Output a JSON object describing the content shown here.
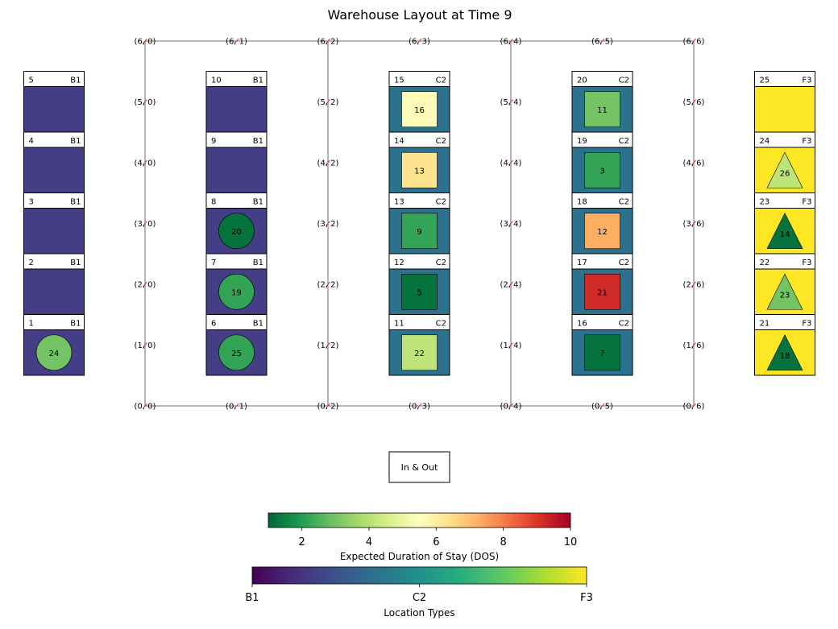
{
  "chart_data": {
    "type": "heatmap",
    "title": "Warehouse Layout at Time 9",
    "grid_nodes": {
      "rows": [
        0,
        1,
        2,
        3,
        4,
        5,
        6
      ],
      "cols": [
        0,
        1,
        2,
        3,
        4,
        5,
        6
      ],
      "label_cols": [
        0,
        2,
        4,
        6
      ],
      "top_bottom_cols": [
        0,
        1,
        2,
        3,
        4,
        5,
        6
      ]
    },
    "columns": [
      {
        "type": "B1",
        "color": "#433e85",
        "locations": [
          {
            "id": 1,
            "item": {
              "id": 24,
              "shape": "circle",
              "dos": 3.0
            }
          },
          {
            "id": 2,
            "item": null
          },
          {
            "id": 3,
            "item": null
          },
          {
            "id": 4,
            "item": null
          },
          {
            "id": 5,
            "item": null
          }
        ]
      },
      {
        "type": "B1",
        "color": "#433e85",
        "locations": [
          {
            "id": 6,
            "item": {
              "id": 25,
              "shape": "circle",
              "dos": 2.2
            }
          },
          {
            "id": 7,
            "item": {
              "id": 19,
              "shape": "circle",
              "dos": 2.2
            }
          },
          {
            "id": 8,
            "item": {
              "id": 20,
              "shape": "circle",
              "dos": 1.2
            }
          },
          {
            "id": 9,
            "item": null
          },
          {
            "id": 10,
            "item": null
          }
        ]
      },
      {
        "type": "C2",
        "color": "#2c718e",
        "locations": [
          {
            "id": 11,
            "item": {
              "id": 22,
              "shape": "square",
              "dos": 4.1
            }
          },
          {
            "id": 12,
            "item": {
              "id": 5,
              "shape": "square",
              "dos": 1.2
            }
          },
          {
            "id": 13,
            "item": {
              "id": 9,
              "shape": "square",
              "dos": 2.2
            }
          },
          {
            "id": 14,
            "item": {
              "id": 13,
              "shape": "square",
              "dos": 6.3
            }
          },
          {
            "id": 15,
            "item": {
              "id": 16,
              "shape": "square",
              "dos": 5.6
            }
          }
        ]
      },
      {
        "type": "C2",
        "color": "#2c718e",
        "locations": [
          {
            "id": 16,
            "item": {
              "id": 7,
              "shape": "square",
              "dos": 1.2
            }
          },
          {
            "id": 17,
            "item": {
              "id": 21,
              "shape": "square",
              "dos": 9.2
            }
          },
          {
            "id": 18,
            "item": {
              "id": 12,
              "shape": "square",
              "dos": 7.3
            }
          },
          {
            "id": 19,
            "item": {
              "id": 3,
              "shape": "square",
              "dos": 2.2
            }
          },
          {
            "id": 20,
            "item": {
              "id": 11,
              "shape": "square",
              "dos": 3.0
            }
          }
        ]
      },
      {
        "type": "F3",
        "color": "#fde725",
        "locations": [
          {
            "id": 21,
            "item": {
              "id": 18,
              "shape": "triangle",
              "dos": 1.2
            }
          },
          {
            "id": 22,
            "item": {
              "id": 23,
              "shape": "triangle",
              "dos": 3.0
            }
          },
          {
            "id": 23,
            "item": {
              "id": 14,
              "shape": "triangle",
              "dos": 1.2
            }
          },
          {
            "id": 24,
            "item": {
              "id": 26,
              "shape": "triangle",
              "dos": 4.1
            }
          },
          {
            "id": 25,
            "item": null
          }
        ]
      }
    ],
    "in_out_label": "In & Out",
    "dos_colorbar": {
      "label": "Expected Duration of Stay (DOS)",
      "range": [
        1,
        10
      ],
      "ticks": [
        "2",
        "4",
        "6",
        "8",
        "10"
      ],
      "colormap": "RdYlGn_r"
    },
    "type_colorbar": {
      "label": "Location Types",
      "ticks": [
        "B1",
        "C2",
        "F3"
      ],
      "colormap": "viridis"
    }
  }
}
